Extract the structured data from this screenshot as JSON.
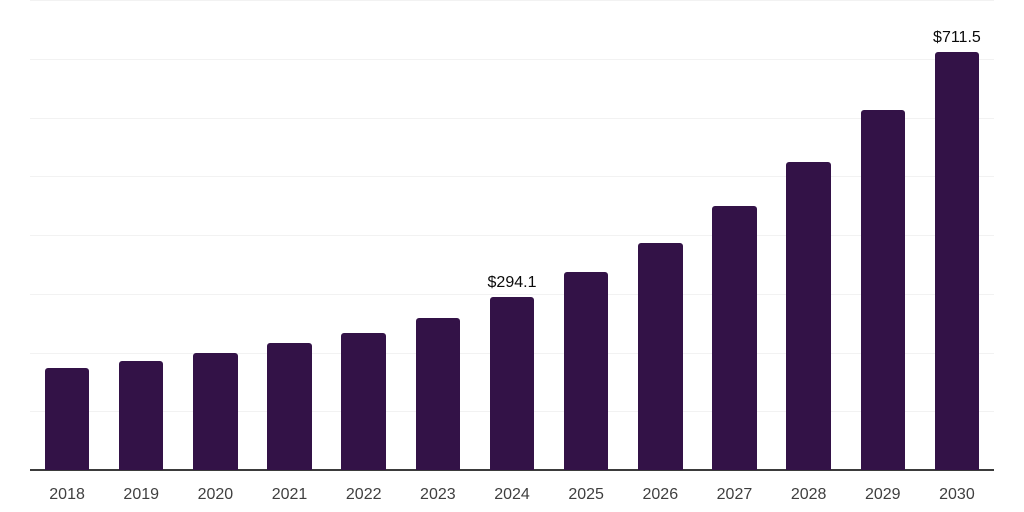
{
  "chart_data": {
    "type": "bar",
    "title": "",
    "categories": [
      "2018",
      "2019",
      "2020",
      "2021",
      "2022",
      "2023",
      "2024",
      "2025",
      "2026",
      "2027",
      "2028",
      "2029",
      "2030"
    ],
    "values": [
      173,
      186,
      200,
      216,
      234,
      258,
      294.1,
      337,
      387,
      450,
      524,
      612,
      711.5
    ],
    "point_labels": [
      "",
      "",
      "",
      "",
      "",
      "",
      "$294.1",
      "",
      "",
      "",
      "",
      "",
      "$711.5"
    ],
    "xlabel": "",
    "ylabel": "",
    "ylim": [
      0,
      800
    ],
    "gridline_interval": 100,
    "grid": "horizontal",
    "legend": "none",
    "y_axis_tick_labels_visible": false,
    "colors": {
      "bar": "#331247",
      "axis_line": "#3b3b3b",
      "gridline": "#f2f2f2",
      "tick_label": "#3f3f3f",
      "data_label": "#0a0a0a",
      "background": "#ffffff"
    }
  }
}
